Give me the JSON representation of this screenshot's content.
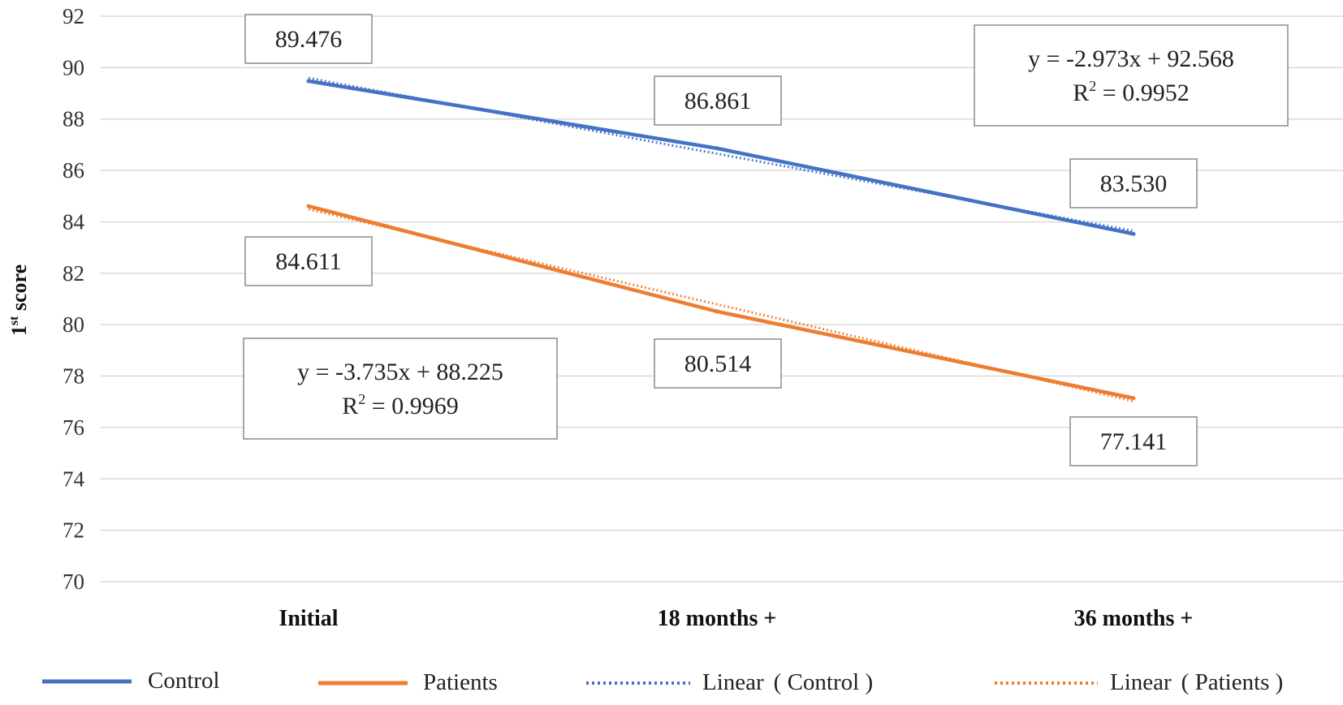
{
  "chart_data": {
    "type": "line",
    "title": "",
    "xlabel": "",
    "ylabel": "1st score",
    "ylabel_main": "1",
    "ylabel_sup": "st",
    "ylabel_rest": " score",
    "ylim": [
      70,
      92
    ],
    "yticks": [
      70,
      72,
      74,
      76,
      78,
      80,
      82,
      84,
      86,
      88,
      90,
      92
    ],
    "categories": [
      "Initial",
      "18 months +",
      "36 months +"
    ],
    "series": [
      {
        "name": "Control",
        "color": "#4472c4",
        "values": [
          89.476,
          86.861,
          83.53
        ],
        "labels": [
          "89.476",
          "86.861",
          "83.530"
        ],
        "trend": {
          "name": "Linear ( Control )",
          "legend_prefix": "Linear",
          "legend_paren": "( Control )",
          "slope": -2.973,
          "intercept": 92.568,
          "equation": "y = -2.973x + 92.568",
          "r2_prefix": "R",
          "r2_sup": "2",
          "r2_value": " = 0.9952"
        }
      },
      {
        "name": "Patients",
        "color": "#ed7d31",
        "values": [
          84.611,
          80.514,
          77.141
        ],
        "labels": [
          "84.611",
          "80.514",
          "77.141"
        ],
        "trend": {
          "name": "Linear ( Patients )",
          "legend_prefix": "Linear",
          "legend_paren": "( Patients )",
          "slope": -3.735,
          "intercept": 88.225,
          "equation": "y = -3.735x + 88.225",
          "r2_prefix": "R",
          "r2_sup": "2",
          "r2_value": " = 0.9969"
        }
      }
    ],
    "legend_position": "bottom",
    "grid": true
  }
}
